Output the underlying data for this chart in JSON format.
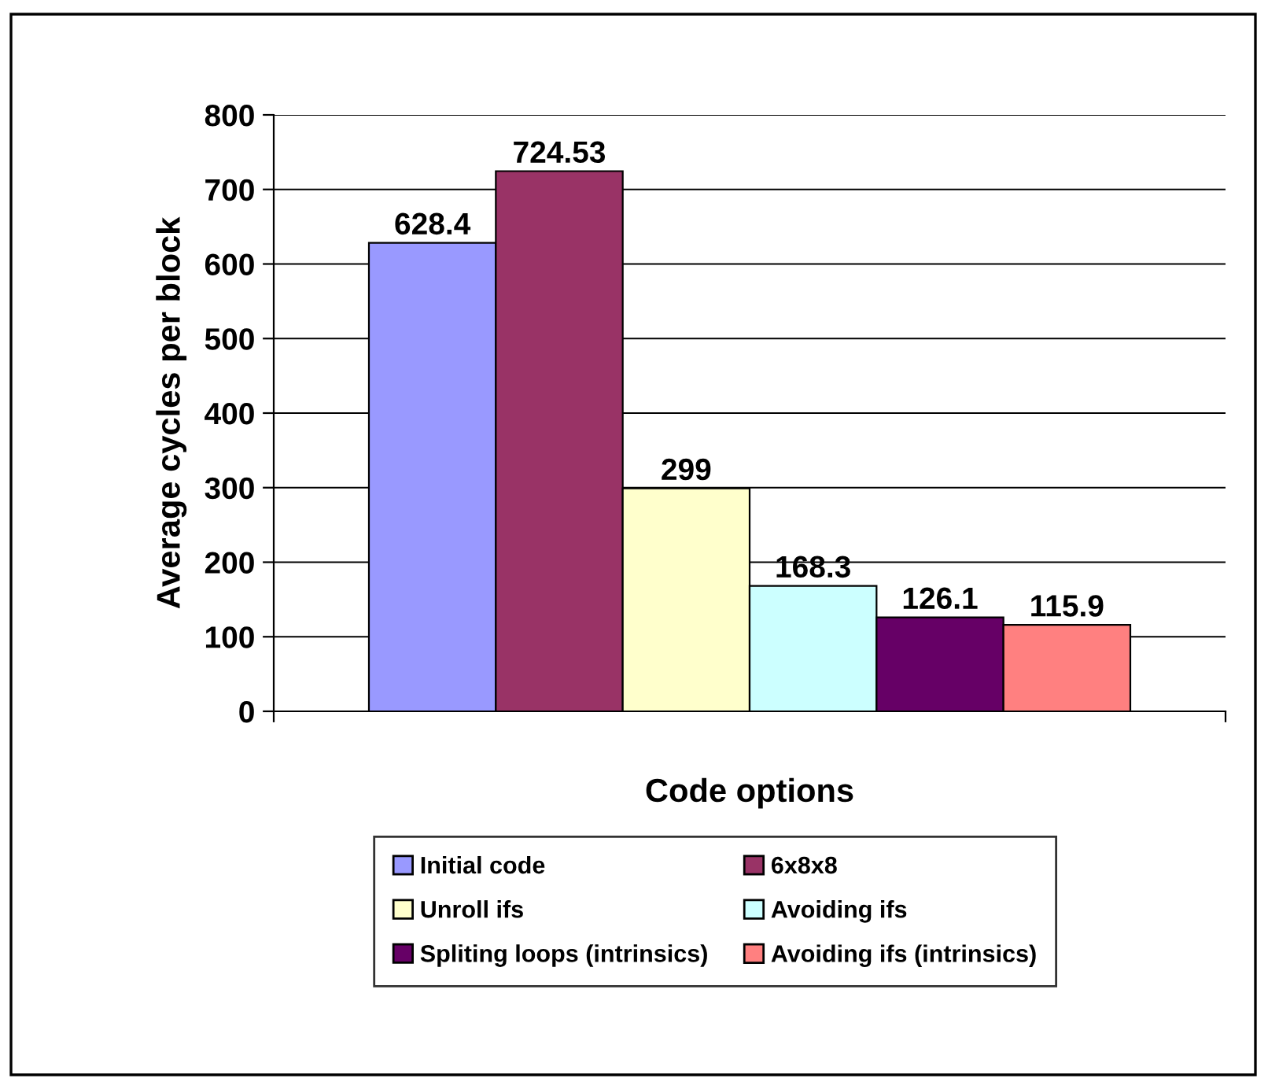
{
  "chart_data": {
    "type": "bar",
    "xlabel": "Code options",
    "ylabel": "Average cycles per block",
    "categories": [
      null
    ],
    "series": [
      {
        "name": "Initial code",
        "color": "#9999ff",
        "values": [
          628.4
        ]
      },
      {
        "name": "6x8x8",
        "color": "#993366",
        "values": [
          724.53
        ]
      },
      {
        "name": "Unroll ifs",
        "color": "#ffffcc",
        "values": [
          299
        ]
      },
      {
        "name": "Avoiding ifs",
        "color": "#ccffff",
        "values": [
          168.3
        ]
      },
      {
        "name": "Spliting loops (intrinsics)",
        "color": "#660066",
        "values": [
          126.1
        ]
      },
      {
        "name": "Avoiding ifs (intrinsics)",
        "color": "#ff8080",
        "values": [
          115.9
        ]
      }
    ],
    "ylim": [
      0,
      800
    ],
    "yticks": [
      0,
      100,
      200,
      300,
      400,
      500,
      600,
      700,
      800
    ],
    "grid": "y",
    "legend": "bottom",
    "data_labels": true
  }
}
